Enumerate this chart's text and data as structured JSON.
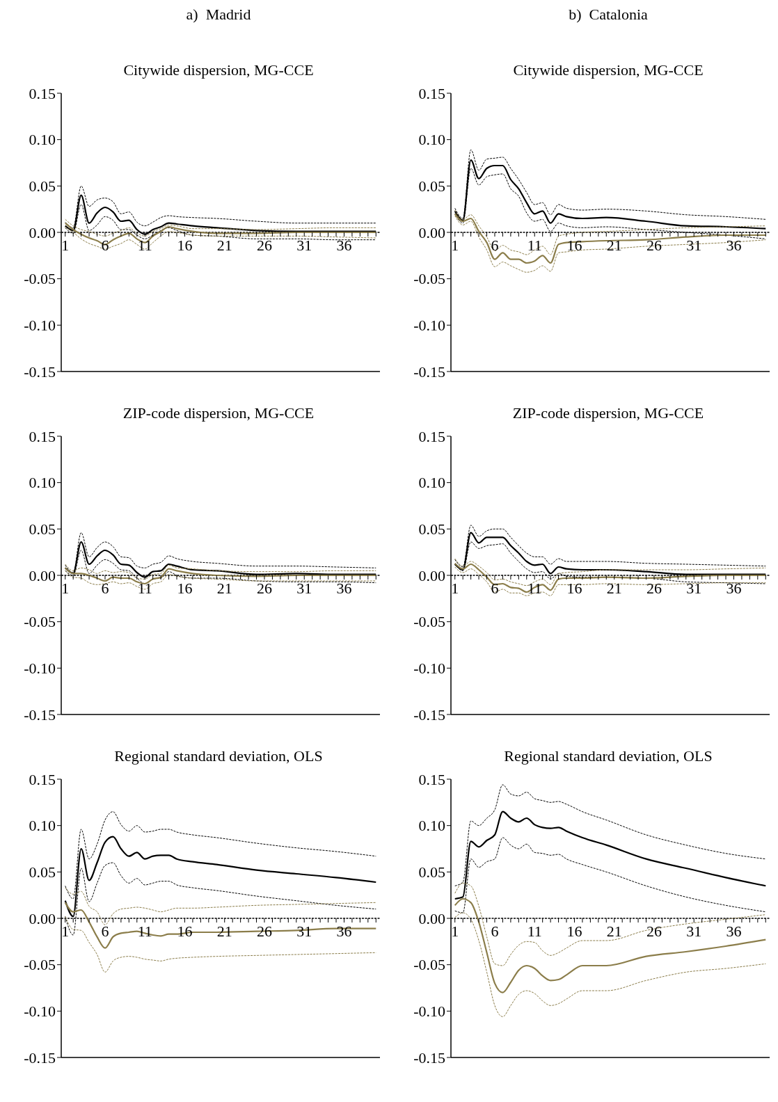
{
  "chart_data": [
    {
      "type": "line",
      "annotations": [
        "a)  Madrid"
      ],
      "title": "Citywide dispersion, MG-CCE",
      "x": [
        1,
        2,
        3,
        4,
        5,
        6,
        7,
        8,
        9,
        10,
        11,
        12,
        13,
        14,
        15,
        17,
        20,
        25,
        30,
        35,
        40
      ],
      "xlim": [
        0.5,
        40.5
      ],
      "ylim": [
        -0.15,
        0.15
      ],
      "xticks": [
        1,
        {
          "value": 2,
          "label": null
        },
        {
          "value": 3,
          "label": null
        },
        {
          "value": 4,
          "label": null
        },
        {
          "value": 5,
          "label": null
        },
        6,
        {
          "value": 7,
          "label": null
        },
        {
          "value": 8,
          "label": null
        },
        {
          "value": 9,
          "label": null
        },
        {
          "value": 10,
          "label": null
        },
        11,
        {
          "value": 12,
          "label": null
        },
        {
          "value": 13,
          "label": null
        },
        {
          "value": 14,
          "label": null
        },
        {
          "value": 15,
          "label": null
        },
        16,
        {
          "value": 17,
          "label": null
        },
        {
          "value": 18,
          "label": null
        },
        {
          "value": 19,
          "label": null
        },
        {
          "value": 20,
          "label": null
        },
        21,
        {
          "value": 22,
          "label": null
        },
        {
          "value": 23,
          "label": null
        },
        {
          "value": 24,
          "label": null
        },
        {
          "value": 25,
          "label": null
        },
        26,
        {
          "value": 27,
          "label": null
        },
        {
          "value": 28,
          "label": null
        },
        {
          "value": 29,
          "label": null
        },
        {
          "value": 30,
          "label": null
        },
        31,
        {
          "value": 32,
          "label": null
        },
        {
          "value": 33,
          "label": null
        },
        {
          "value": 34,
          "label": null
        },
        {
          "value": 35,
          "label": null
        },
        36,
        {
          "value": 37,
          "label": null
        },
        {
          "value": 38,
          "label": null
        },
        {
          "value": 39,
          "label": null
        },
        {
          "value": 40,
          "label": null
        }
      ],
      "yticks": [
        {
          "value": -0.15,
          "label": "-0.15"
        },
        {
          "value": -0.1,
          "label": "-0.10"
        },
        {
          "value": -0.05,
          "label": "-0.05"
        },
        {
          "value": 0,
          "label": "0.00"
        },
        {
          "value": 0.05,
          "label": "0.05"
        },
        {
          "value": 0.1,
          "label": "0.10"
        },
        {
          "value": 0.15,
          "label": "0.15"
        }
      ],
      "ref_lines": [
        {
          "axis": "y",
          "value": 0,
          "color": "#000000",
          "line_style": "dashed"
        }
      ],
      "series": [
        {
          "color": "#000000",
          "line_style": "solid",
          "values": [
            0.007,
            0.002,
            0.04,
            0.01,
            0.021,
            0.027,
            0.022,
            0.012,
            0.013,
            0.003,
            -0.002,
            0.003,
            0.006,
            0.01,
            0.009,
            0.007,
            0.005,
            0.002,
            0.001,
            0.001,
            0.001
          ]
        },
        {
          "color": "#000000",
          "line_style": "dashed",
          "values": [
            0.011,
            0.005,
            0.05,
            0.028,
            0.035,
            0.037,
            0.033,
            0.02,
            0.022,
            0.011,
            0.007,
            0.011,
            0.016,
            0.018,
            0.017,
            0.016,
            0.015,
            0.012,
            0.01,
            0.01,
            0.01
          ]
        },
        {
          "color": "#000000",
          "line_style": "dashed",
          "values": [
            0.005,
            -0.001,
            0.03,
            0.002,
            0.008,
            0.017,
            0.013,
            0.003,
            0.003,
            -0.003,
            -0.007,
            -0.003,
            0.002,
            0.005,
            0.002,
            -0.003,
            -0.004,
            -0.007,
            -0.007,
            -0.008,
            -0.008
          ]
        },
        {
          "color": "#8b7d4a",
          "line_style": "solid",
          "values": [
            0.01,
            0.003,
            -0.002,
            -0.006,
            -0.009,
            -0.013,
            -0.008,
            -0.004,
            -0.001,
            -0.007,
            -0.011,
            -0.004,
            0.001,
            0.006,
            0.004,
            0.001,
            -0.001,
            -0.001,
            0,
            0,
            0
          ]
        },
        {
          "color": "#8b7d4a",
          "line_style": "dashed",
          "values": [
            0.014,
            0.007,
            0.003,
            0.001,
            -0.002,
            -0.004,
            -0.001,
            0.002,
            0.005,
            -0.001,
            -0.004,
            0.001,
            0.004,
            0.008,
            0.007,
            0.004,
            0.004,
            0.003,
            0.004,
            0.005,
            0.005
          ]
        },
        {
          "color": "#8b7d4a",
          "line_style": "dashed",
          "values": [
            0.006,
            0,
            -0.007,
            -0.012,
            -0.015,
            -0.018,
            -0.015,
            -0.012,
            -0.008,
            -0.013,
            -0.018,
            -0.011,
            -0.004,
            0.001,
            0,
            -0.003,
            -0.004,
            -0.004,
            -0.004,
            -0.005,
            -0.006
          ]
        }
      ]
    },
    {
      "type": "line",
      "annotations": [
        "b)  Catalonia"
      ],
      "title": "Citywide dispersion, MG-CCE",
      "x": [
        1,
        2,
        3,
        4,
        5,
        6,
        7,
        8,
        9,
        10,
        11,
        12,
        13,
        14,
        15,
        17,
        20,
        25,
        30,
        35,
        40
      ],
      "xlim": [
        0.5,
        40.5
      ],
      "ylim": [
        -0.15,
        0.15
      ],
      "xticks": [
        1,
        {
          "value": 2,
          "label": null
        },
        {
          "value": 3,
          "label": null
        },
        {
          "value": 4,
          "label": null
        },
        {
          "value": 5,
          "label": null
        },
        6,
        {
          "value": 7,
          "label": null
        },
        {
          "value": 8,
          "label": null
        },
        {
          "value": 9,
          "label": null
        },
        {
          "value": 10,
          "label": null
        },
        11,
        {
          "value": 12,
          "label": null
        },
        {
          "value": 13,
          "label": null
        },
        {
          "value": 14,
          "label": null
        },
        {
          "value": 15,
          "label": null
        },
        16,
        {
          "value": 17,
          "label": null
        },
        {
          "value": 18,
          "label": null
        },
        {
          "value": 19,
          "label": null
        },
        {
          "value": 20,
          "label": null
        },
        21,
        {
          "value": 22,
          "label": null
        },
        {
          "value": 23,
          "label": null
        },
        {
          "value": 24,
          "label": null
        },
        {
          "value": 25,
          "label": null
        },
        26,
        {
          "value": 27,
          "label": null
        },
        {
          "value": 28,
          "label": null
        },
        {
          "value": 29,
          "label": null
        },
        {
          "value": 30,
          "label": null
        },
        31,
        {
          "value": 32,
          "label": null
        },
        {
          "value": 33,
          "label": null
        },
        {
          "value": 34,
          "label": null
        },
        {
          "value": 35,
          "label": null
        },
        36,
        {
          "value": 37,
          "label": null
        },
        {
          "value": 38,
          "label": null
        },
        {
          "value": 39,
          "label": null
        },
        {
          "value": 40,
          "label": null
        }
      ],
      "yticks": [
        {
          "value": -0.15,
          "label": "-0.15"
        },
        {
          "value": -0.1,
          "label": "-0.10"
        },
        {
          "value": -0.05,
          "label": "-0.05"
        },
        {
          "value": 0,
          "label": "0.00"
        },
        {
          "value": 0.05,
          "label": "0.05"
        },
        {
          "value": 0.1,
          "label": "0.10"
        },
        {
          "value": 0.15,
          "label": "0.15"
        }
      ],
      "ref_lines": [
        {
          "axis": "y",
          "value": 0,
          "color": "#000000",
          "line_style": "dashed"
        }
      ],
      "series": [
        {
          "color": "#000000",
          "line_style": "solid",
          "values": [
            0.023,
            0.013,
            0.078,
            0.058,
            0.069,
            0.072,
            0.072,
            0.057,
            0.047,
            0.032,
            0.02,
            0.023,
            0.01,
            0.02,
            0.017,
            0.015,
            0.016,
            0.012,
            0.007,
            0.006,
            0.004
          ]
        },
        {
          "color": "#000000",
          "line_style": "dashed",
          "values": [
            0.026,
            0.015,
            0.089,
            0.067,
            0.079,
            0.08,
            0.081,
            0.069,
            0.057,
            0.043,
            0.03,
            0.032,
            0.019,
            0.03,
            0.026,
            0.024,
            0.025,
            0.023,
            0.019,
            0.017,
            0.014
          ]
        },
        {
          "color": "#000000",
          "line_style": "dashed",
          "values": [
            0.02,
            0.01,
            0.069,
            0.051,
            0.06,
            0.062,
            0.063,
            0.047,
            0.039,
            0.021,
            0.012,
            0.014,
            0.001,
            0.01,
            0.007,
            0.005,
            0.006,
            0.003,
            0,
            -0.003,
            -0.007
          ]
        },
        {
          "color": "#8b7d4a",
          "line_style": "solid",
          "values": [
            0.02,
            0.012,
            0.015,
            0.001,
            -0.011,
            -0.029,
            -0.022,
            -0.029,
            -0.029,
            -0.033,
            -0.031,
            -0.025,
            -0.033,
            -0.013,
            -0.011,
            -0.01,
            -0.009,
            -0.008,
            -0.005,
            -0.003,
            -0.003
          ]
        },
        {
          "color": "#8b7d4a",
          "line_style": "dashed",
          "values": [
            0.024,
            0.014,
            0.019,
            0.007,
            -0.005,
            -0.02,
            -0.014,
            -0.019,
            -0.021,
            -0.024,
            -0.019,
            -0.015,
            -0.024,
            -0.004,
            -0.002,
            0,
            0.001,
            0.003,
            0.005,
            0.006,
            0.007
          ]
        },
        {
          "color": "#8b7d4a",
          "line_style": "dashed",
          "values": [
            0.018,
            0.008,
            0.012,
            -0.005,
            -0.019,
            -0.037,
            -0.032,
            -0.036,
            -0.04,
            -0.043,
            -0.041,
            -0.036,
            -0.042,
            -0.022,
            -0.021,
            -0.019,
            -0.018,
            -0.015,
            -0.013,
            -0.011,
            -0.008
          ]
        }
      ]
    },
    {
      "type": "line",
      "title": "ZIP-code dispersion, MG-CCE",
      "x": [
        1,
        2,
        3,
        4,
        5,
        6,
        7,
        8,
        9,
        10,
        11,
        12,
        13,
        14,
        15,
        17,
        20,
        25,
        30,
        35,
        40
      ],
      "xlim": [
        0.5,
        40.5
      ],
      "ylim": [
        -0.15,
        0.15
      ],
      "xticks": [
        1,
        {
          "value": 2,
          "label": null
        },
        {
          "value": 3,
          "label": null
        },
        {
          "value": 4,
          "label": null
        },
        {
          "value": 5,
          "label": null
        },
        6,
        {
          "value": 7,
          "label": null
        },
        {
          "value": 8,
          "label": null
        },
        {
          "value": 9,
          "label": null
        },
        {
          "value": 10,
          "label": null
        },
        11,
        {
          "value": 12,
          "label": null
        },
        {
          "value": 13,
          "label": null
        },
        {
          "value": 14,
          "label": null
        },
        {
          "value": 15,
          "label": null
        },
        16,
        {
          "value": 17,
          "label": null
        },
        {
          "value": 18,
          "label": null
        },
        {
          "value": 19,
          "label": null
        },
        {
          "value": 20,
          "label": null
        },
        21,
        {
          "value": 22,
          "label": null
        },
        {
          "value": 23,
          "label": null
        },
        {
          "value": 24,
          "label": null
        },
        {
          "value": 25,
          "label": null
        },
        26,
        {
          "value": 27,
          "label": null
        },
        {
          "value": 28,
          "label": null
        },
        {
          "value": 29,
          "label": null
        },
        {
          "value": 30,
          "label": null
        },
        31,
        {
          "value": 32,
          "label": null
        },
        {
          "value": 33,
          "label": null
        },
        {
          "value": 34,
          "label": null
        },
        {
          "value": 35,
          "label": null
        },
        36,
        {
          "value": 37,
          "label": null
        },
        {
          "value": 38,
          "label": null
        },
        {
          "value": 39,
          "label": null
        },
        {
          "value": 40,
          "label": null
        }
      ],
      "yticks": [
        {
          "value": -0.15,
          "label": "-0.15"
        },
        {
          "value": -0.1,
          "label": "-0.10"
        },
        {
          "value": -0.05,
          "label": "-0.05"
        },
        {
          "value": 0,
          "label": "0.00"
        },
        {
          "value": 0.05,
          "label": "0.05"
        },
        {
          "value": 0.1,
          "label": "0.10"
        },
        {
          "value": 0.15,
          "label": "0.15"
        }
      ],
      "ref_lines": [
        {
          "axis": "y",
          "value": 0,
          "color": "#000000",
          "line_style": "dashed"
        }
      ],
      "series": [
        {
          "color": "#000000",
          "line_style": "solid",
          "values": [
            0.008,
            0.002,
            0.036,
            0.012,
            0.021,
            0.027,
            0.022,
            0.012,
            0.011,
            0.003,
            -0.002,
            0.004,
            0.005,
            0.012,
            0.01,
            0.006,
            0.005,
            0.001,
            0.002,
            0.001,
            0.001
          ]
        },
        {
          "color": "#000000",
          "line_style": "dashed",
          "values": [
            0.011,
            0.003,
            0.046,
            0.02,
            0.03,
            0.036,
            0.031,
            0.02,
            0.019,
            0.01,
            0.008,
            0.012,
            0.014,
            0.021,
            0.018,
            0.015,
            0.013,
            0.01,
            0.01,
            0.009,
            0.008
          ]
        },
        {
          "color": "#000000",
          "line_style": "dashed",
          "values": [
            0.005,
            0,
            0.027,
            0.002,
            0.011,
            0.017,
            0.013,
            0.006,
            0.005,
            -0.003,
            -0.009,
            -0.004,
            -0.003,
            0.004,
            0,
            -0.003,
            -0.003,
            -0.006,
            -0.007,
            -0.007,
            -0.008
          ]
        },
        {
          "color": "#8b7d4a",
          "line_style": "solid",
          "values": [
            0.008,
            0.002,
            0.002,
            0,
            -0.003,
            -0.006,
            -0.002,
            -0.003,
            -0.003,
            -0.007,
            -0.009,
            -0.004,
            -0.002,
            0.007,
            0.005,
            0.002,
            0,
            -0.001,
            0,
            0,
            0
          ]
        },
        {
          "color": "#8b7d4a",
          "line_style": "dashed",
          "values": [
            0.012,
            0.005,
            0.008,
            0.006,
            0.002,
            0.005,
            0.003,
            0.004,
            0.003,
            -0.003,
            -0.004,
            0.001,
            0.002,
            0.011,
            0.008,
            0.007,
            0.005,
            0.004,
            0.004,
            0.005,
            0.005
          ]
        },
        {
          "color": "#8b7d4a",
          "line_style": "dashed",
          "values": [
            0.005,
            -0.002,
            -0.003,
            -0.008,
            -0.01,
            -0.009,
            -0.007,
            -0.009,
            -0.008,
            -0.012,
            -0.015,
            -0.009,
            -0.007,
            0.001,
            -0.001,
            -0.003,
            -0.004,
            -0.006,
            -0.006,
            -0.006,
            -0.006
          ]
        }
      ]
    },
    {
      "type": "line",
      "title": "ZIP-code dispersion, MG-CCE",
      "x": [
        1,
        2,
        3,
        4,
        5,
        6,
        7,
        8,
        9,
        10,
        11,
        12,
        13,
        14,
        15,
        17,
        20,
        25,
        30,
        35,
        40
      ],
      "xlim": [
        0.5,
        40.5
      ],
      "ylim": [
        -0.15,
        0.15
      ],
      "xticks": [
        1,
        {
          "value": 2,
          "label": null
        },
        {
          "value": 3,
          "label": null
        },
        {
          "value": 4,
          "label": null
        },
        {
          "value": 5,
          "label": null
        },
        6,
        {
          "value": 7,
          "label": null
        },
        {
          "value": 8,
          "label": null
        },
        {
          "value": 9,
          "label": null
        },
        {
          "value": 10,
          "label": null
        },
        11,
        {
          "value": 12,
          "label": null
        },
        {
          "value": 13,
          "label": null
        },
        {
          "value": 14,
          "label": null
        },
        {
          "value": 15,
          "label": null
        },
        16,
        {
          "value": 17,
          "label": null
        },
        {
          "value": 18,
          "label": null
        },
        {
          "value": 19,
          "label": null
        },
        {
          "value": 20,
          "label": null
        },
        21,
        {
          "value": 22,
          "label": null
        },
        {
          "value": 23,
          "label": null
        },
        {
          "value": 24,
          "label": null
        },
        {
          "value": 25,
          "label": null
        },
        26,
        {
          "value": 27,
          "label": null
        },
        {
          "value": 28,
          "label": null
        },
        {
          "value": 29,
          "label": null
        },
        {
          "value": 30,
          "label": null
        },
        31,
        {
          "value": 32,
          "label": null
        },
        {
          "value": 33,
          "label": null
        },
        {
          "value": 34,
          "label": null
        },
        {
          "value": 35,
          "label": null
        },
        36,
        {
          "value": 37,
          "label": null
        },
        {
          "value": 38,
          "label": null
        },
        {
          "value": 39,
          "label": null
        },
        {
          "value": 40,
          "label": null
        }
      ],
      "yticks": [
        {
          "value": -0.15,
          "label": "-0.15"
        },
        {
          "value": -0.1,
          "label": "-0.10"
        },
        {
          "value": -0.05,
          "label": "-0.05"
        },
        {
          "value": 0,
          "label": "0.00"
        },
        {
          "value": 0.05,
          "label": "0.05"
        },
        {
          "value": 0.1,
          "label": "0.10"
        },
        {
          "value": 0.15,
          "label": "0.15"
        }
      ],
      "ref_lines": [
        {
          "axis": "y",
          "value": 0,
          "color": "#000000",
          "line_style": "dashed"
        }
      ],
      "series": [
        {
          "color": "#000000",
          "line_style": "solid",
          "values": [
            0.012,
            0.006,
            0.046,
            0.035,
            0.041,
            0.041,
            0.041,
            0.032,
            0.024,
            0.015,
            0.011,
            0.012,
            0.002,
            0.009,
            0.007,
            0.006,
            0.006,
            0.004,
            0.001,
            0.001,
            0.001
          ]
        },
        {
          "color": "#000000",
          "line_style": "dashed",
          "values": [
            0.017,
            0.009,
            0.054,
            0.042,
            0.048,
            0.05,
            0.05,
            0.041,
            0.032,
            0.024,
            0.02,
            0.02,
            0.012,
            0.018,
            0.015,
            0.015,
            0.015,
            0.013,
            0.012,
            0.011,
            0.01
          ]
        },
        {
          "color": "#000000",
          "line_style": "dashed",
          "values": [
            0.012,
            0.005,
            0.036,
            0.029,
            0.032,
            0.033,
            0.034,
            0.024,
            0.015,
            0.007,
            0.003,
            0.004,
            -0.004,
            0.002,
            -0.001,
            -0.002,
            -0.002,
            -0.003,
            -0.007,
            -0.008,
            -0.009
          ]
        },
        {
          "color": "#8b7d4a",
          "line_style": "solid",
          "values": [
            0.013,
            0.007,
            0.012,
            0.006,
            -0.002,
            -0.01,
            -0.009,
            -0.013,
            -0.014,
            -0.018,
            -0.013,
            -0.01,
            -0.016,
            -0.004,
            -0.003,
            -0.003,
            -0.002,
            -0.003,
            -0.001,
            0,
            0
          ]
        },
        {
          "color": "#8b7d4a",
          "line_style": "dashed",
          "values": [
            0.018,
            0.01,
            0.015,
            0.01,
            0.003,
            -0.005,
            -0.004,
            -0.007,
            -0.009,
            -0.011,
            -0.007,
            -0.004,
            -0.01,
            0.002,
            0.003,
            0.004,
            0.006,
            0.006,
            0.006,
            0.007,
            0.008
          ]
        },
        {
          "color": "#8b7d4a",
          "line_style": "dashed",
          "values": [
            0.009,
            0.003,
            0.007,
            0.001,
            -0.007,
            -0.018,
            -0.015,
            -0.019,
            -0.019,
            -0.022,
            -0.019,
            -0.018,
            -0.022,
            -0.01,
            -0.01,
            -0.01,
            -0.009,
            -0.01,
            -0.009,
            -0.008,
            -0.008
          ]
        }
      ]
    },
    {
      "type": "line",
      "title": "Regional standard deviation, OLS",
      "x": [
        1,
        2,
        3,
        4,
        5,
        6,
        7,
        8,
        9,
        10,
        11,
        12,
        13,
        14,
        15,
        17,
        20,
        25,
        30,
        35,
        40
      ],
      "xlim": [
        0.5,
        40.5
      ],
      "ylim": [
        -0.15,
        0.15
      ],
      "xticks": [
        1,
        {
          "value": 2,
          "label": null
        },
        {
          "value": 3,
          "label": null
        },
        {
          "value": 4,
          "label": null
        },
        {
          "value": 5,
          "label": null
        },
        6,
        {
          "value": 7,
          "label": null
        },
        {
          "value": 8,
          "label": null
        },
        {
          "value": 9,
          "label": null
        },
        {
          "value": 10,
          "label": null
        },
        11,
        {
          "value": 12,
          "label": null
        },
        {
          "value": 13,
          "label": null
        },
        {
          "value": 14,
          "label": null
        },
        {
          "value": 15,
          "label": null
        },
        16,
        {
          "value": 17,
          "label": null
        },
        {
          "value": 18,
          "label": null
        },
        {
          "value": 19,
          "label": null
        },
        {
          "value": 20,
          "label": null
        },
        21,
        {
          "value": 22,
          "label": null
        },
        {
          "value": 23,
          "label": null
        },
        {
          "value": 24,
          "label": null
        },
        {
          "value": 25,
          "label": null
        },
        26,
        {
          "value": 27,
          "label": null
        },
        {
          "value": 28,
          "label": null
        },
        {
          "value": 29,
          "label": null
        },
        {
          "value": 30,
          "label": null
        },
        31,
        {
          "value": 32,
          "label": null
        },
        {
          "value": 33,
          "label": null
        },
        {
          "value": 34,
          "label": null
        },
        {
          "value": 35,
          "label": null
        },
        36,
        {
          "value": 37,
          "label": null
        },
        {
          "value": 38,
          "label": null
        },
        {
          "value": 39,
          "label": null
        },
        {
          "value": 40,
          "label": null
        }
      ],
      "yticks": [
        {
          "value": -0.15,
          "label": "-0.15"
        },
        {
          "value": -0.1,
          "label": "-0.10"
        },
        {
          "value": -0.05,
          "label": "-0.05"
        },
        {
          "value": 0,
          "label": "0.00"
        },
        {
          "value": 0.05,
          "label": "0.05"
        },
        {
          "value": 0.1,
          "label": "0.10"
        },
        {
          "value": 0.15,
          "label": "0.15"
        }
      ],
      "ref_lines": [
        {
          "axis": "y",
          "value": 0,
          "color": "#000000",
          "line_style": "dashed"
        }
      ],
      "series": [
        {
          "color": "#000000",
          "line_style": "solid",
          "values": [
            0.019,
            0.002,
            0.075,
            0.041,
            0.06,
            0.082,
            0.088,
            0.075,
            0.067,
            0.071,
            0.064,
            0.067,
            0.068,
            0.068,
            0.064,
            0.061,
            0.058,
            0.052,
            0.048,
            0.044,
            0.039
          ]
        },
        {
          "color": "#000000",
          "line_style": "dashed",
          "values": [
            0.035,
            0.021,
            0.096,
            0.064,
            0.08,
            0.106,
            0.115,
            0.101,
            0.094,
            0.1,
            0.093,
            0.094,
            0.096,
            0.096,
            0.093,
            0.09,
            0.087,
            0.081,
            0.076,
            0.072,
            0.067
          ]
        },
        {
          "color": "#000000",
          "line_style": "dashed",
          "values": [
            0.002,
            -0.018,
            0.054,
            0.018,
            0.038,
            0.057,
            0.06,
            0.046,
            0.038,
            0.043,
            0.036,
            0.038,
            0.04,
            0.04,
            0.036,
            0.033,
            0.03,
            0.024,
            0.019,
            0.014,
            0.01
          ]
        },
        {
          "color": "#8b7d4a",
          "line_style": "solid",
          "values": [
            0.017,
            0.007,
            0.009,
            -0.004,
            -0.02,
            -0.032,
            -0.02,
            -0.016,
            -0.015,
            -0.014,
            -0.016,
            -0.018,
            -0.019,
            -0.017,
            -0.017,
            -0.015,
            -0.015,
            -0.014,
            -0.013,
            -0.011,
            -0.011
          ]
        },
        {
          "color": "#8b7d4a",
          "line_style": "dashed",
          "values": [
            0.033,
            0.026,
            0.029,
            0.013,
            0.007,
            -0.007,
            0.005,
            0.01,
            0.011,
            0.012,
            0.011,
            0.009,
            0.007,
            0.009,
            0.011,
            0.011,
            0.012,
            0.014,
            0.015,
            0.016,
            0.017
          ]
        },
        {
          "color": "#8b7d4a",
          "line_style": "dashed",
          "values": [
            0.002,
            -0.012,
            -0.013,
            -0.026,
            -0.039,
            -0.058,
            -0.046,
            -0.042,
            -0.041,
            -0.042,
            -0.044,
            -0.045,
            -0.046,
            -0.044,
            -0.043,
            -0.042,
            -0.041,
            -0.04,
            -0.039,
            -0.038,
            -0.037
          ]
        }
      ]
    },
    {
      "type": "line",
      "title": "Regional standard deviation, OLS",
      "x": [
        1,
        2,
        3,
        4,
        5,
        6,
        7,
        8,
        9,
        10,
        11,
        12,
        13,
        14,
        15,
        17,
        20,
        25,
        30,
        35,
        40
      ],
      "xlim": [
        0.5,
        40.5
      ],
      "ylim": [
        -0.15,
        0.15
      ],
      "xticks": [
        1,
        {
          "value": 2,
          "label": null
        },
        {
          "value": 3,
          "label": null
        },
        {
          "value": 4,
          "label": null
        },
        {
          "value": 5,
          "label": null
        },
        6,
        {
          "value": 7,
          "label": null
        },
        {
          "value": 8,
          "label": null
        },
        {
          "value": 9,
          "label": null
        },
        {
          "value": 10,
          "label": null
        },
        11,
        {
          "value": 12,
          "label": null
        },
        {
          "value": 13,
          "label": null
        },
        {
          "value": 14,
          "label": null
        },
        {
          "value": 15,
          "label": null
        },
        16,
        {
          "value": 17,
          "label": null
        },
        {
          "value": 18,
          "label": null
        },
        {
          "value": 19,
          "label": null
        },
        {
          "value": 20,
          "label": null
        },
        21,
        {
          "value": 22,
          "label": null
        },
        {
          "value": 23,
          "label": null
        },
        {
          "value": 24,
          "label": null
        },
        {
          "value": 25,
          "label": null
        },
        26,
        {
          "value": 27,
          "label": null
        },
        {
          "value": 28,
          "label": null
        },
        {
          "value": 29,
          "label": null
        },
        {
          "value": 30,
          "label": null
        },
        31,
        {
          "value": 32,
          "label": null
        },
        {
          "value": 33,
          "label": null
        },
        {
          "value": 34,
          "label": null
        },
        {
          "value": 35,
          "label": null
        },
        36,
        {
          "value": 37,
          "label": null
        },
        {
          "value": 38,
          "label": null
        },
        {
          "value": 39,
          "label": null
        },
        {
          "value": 40,
          "label": null
        }
      ],
      "yticks": [
        {
          "value": -0.15,
          "label": "-0.15"
        },
        {
          "value": -0.1,
          "label": "-0.10"
        },
        {
          "value": -0.05,
          "label": "-0.05"
        },
        {
          "value": 0,
          "label": "0.00"
        },
        {
          "value": 0.05,
          "label": "0.05"
        },
        {
          "value": 0.1,
          "label": "0.10"
        },
        {
          "value": 0.15,
          "label": "0.15"
        }
      ],
      "ref_lines": [
        {
          "axis": "y",
          "value": 0,
          "color": "#000000",
          "line_style": "dashed"
        }
      ],
      "series": [
        {
          "color": "#000000",
          "line_style": "solid",
          "values": [
            0.021,
            0.023,
            0.083,
            0.077,
            0.084,
            0.09,
            0.115,
            0.108,
            0.104,
            0.108,
            0.101,
            0.098,
            0.097,
            0.098,
            0.094,
            0.087,
            0.079,
            0.064,
            0.054,
            0.044,
            0.035
          ]
        },
        {
          "color": "#000000",
          "line_style": "dashed",
          "values": [
            0.035,
            0.039,
            0.105,
            0.1,
            0.108,
            0.117,
            0.144,
            0.134,
            0.132,
            0.136,
            0.129,
            0.127,
            0.125,
            0.126,
            0.123,
            0.115,
            0.106,
            0.09,
            0.079,
            0.07,
            0.064
          ]
        },
        {
          "color": "#000000",
          "line_style": "dashed",
          "values": [
            0.008,
            0.006,
            0.064,
            0.055,
            0.061,
            0.064,
            0.087,
            0.079,
            0.075,
            0.08,
            0.071,
            0.07,
            0.068,
            0.069,
            0.064,
            0.058,
            0.05,
            0.035,
            0.023,
            0.014,
            0.007
          ]
        },
        {
          "color": "#8b7d4a",
          "line_style": "solid",
          "values": [
            0.014,
            0.021,
            0.017,
            -0.004,
            -0.037,
            -0.07,
            -0.08,
            -0.069,
            -0.056,
            -0.051,
            -0.054,
            -0.062,
            -0.067,
            -0.066,
            -0.061,
            -0.051,
            -0.051,
            -0.041,
            -0.036,
            -0.03,
            -0.023
          ]
        },
        {
          "color": "#8b7d4a",
          "line_style": "dashed",
          "values": [
            0.027,
            0.038,
            0.035,
            0.013,
            -0.02,
            -0.049,
            -0.051,
            -0.039,
            -0.029,
            -0.025,
            -0.026,
            -0.035,
            -0.04,
            -0.037,
            -0.032,
            -0.024,
            -0.024,
            -0.013,
            -0.006,
            -0.001,
            0.004
          ]
        },
        {
          "color": "#8b7d4a",
          "line_style": "dashed",
          "values": [
            0.001,
            0.006,
            -0.001,
            -0.024,
            -0.058,
            -0.094,
            -0.106,
            -0.094,
            -0.082,
            -0.078,
            -0.081,
            -0.089,
            -0.094,
            -0.092,
            -0.087,
            -0.078,
            -0.078,
            -0.067,
            -0.058,
            -0.054,
            -0.049
          ]
        }
      ]
    }
  ]
}
